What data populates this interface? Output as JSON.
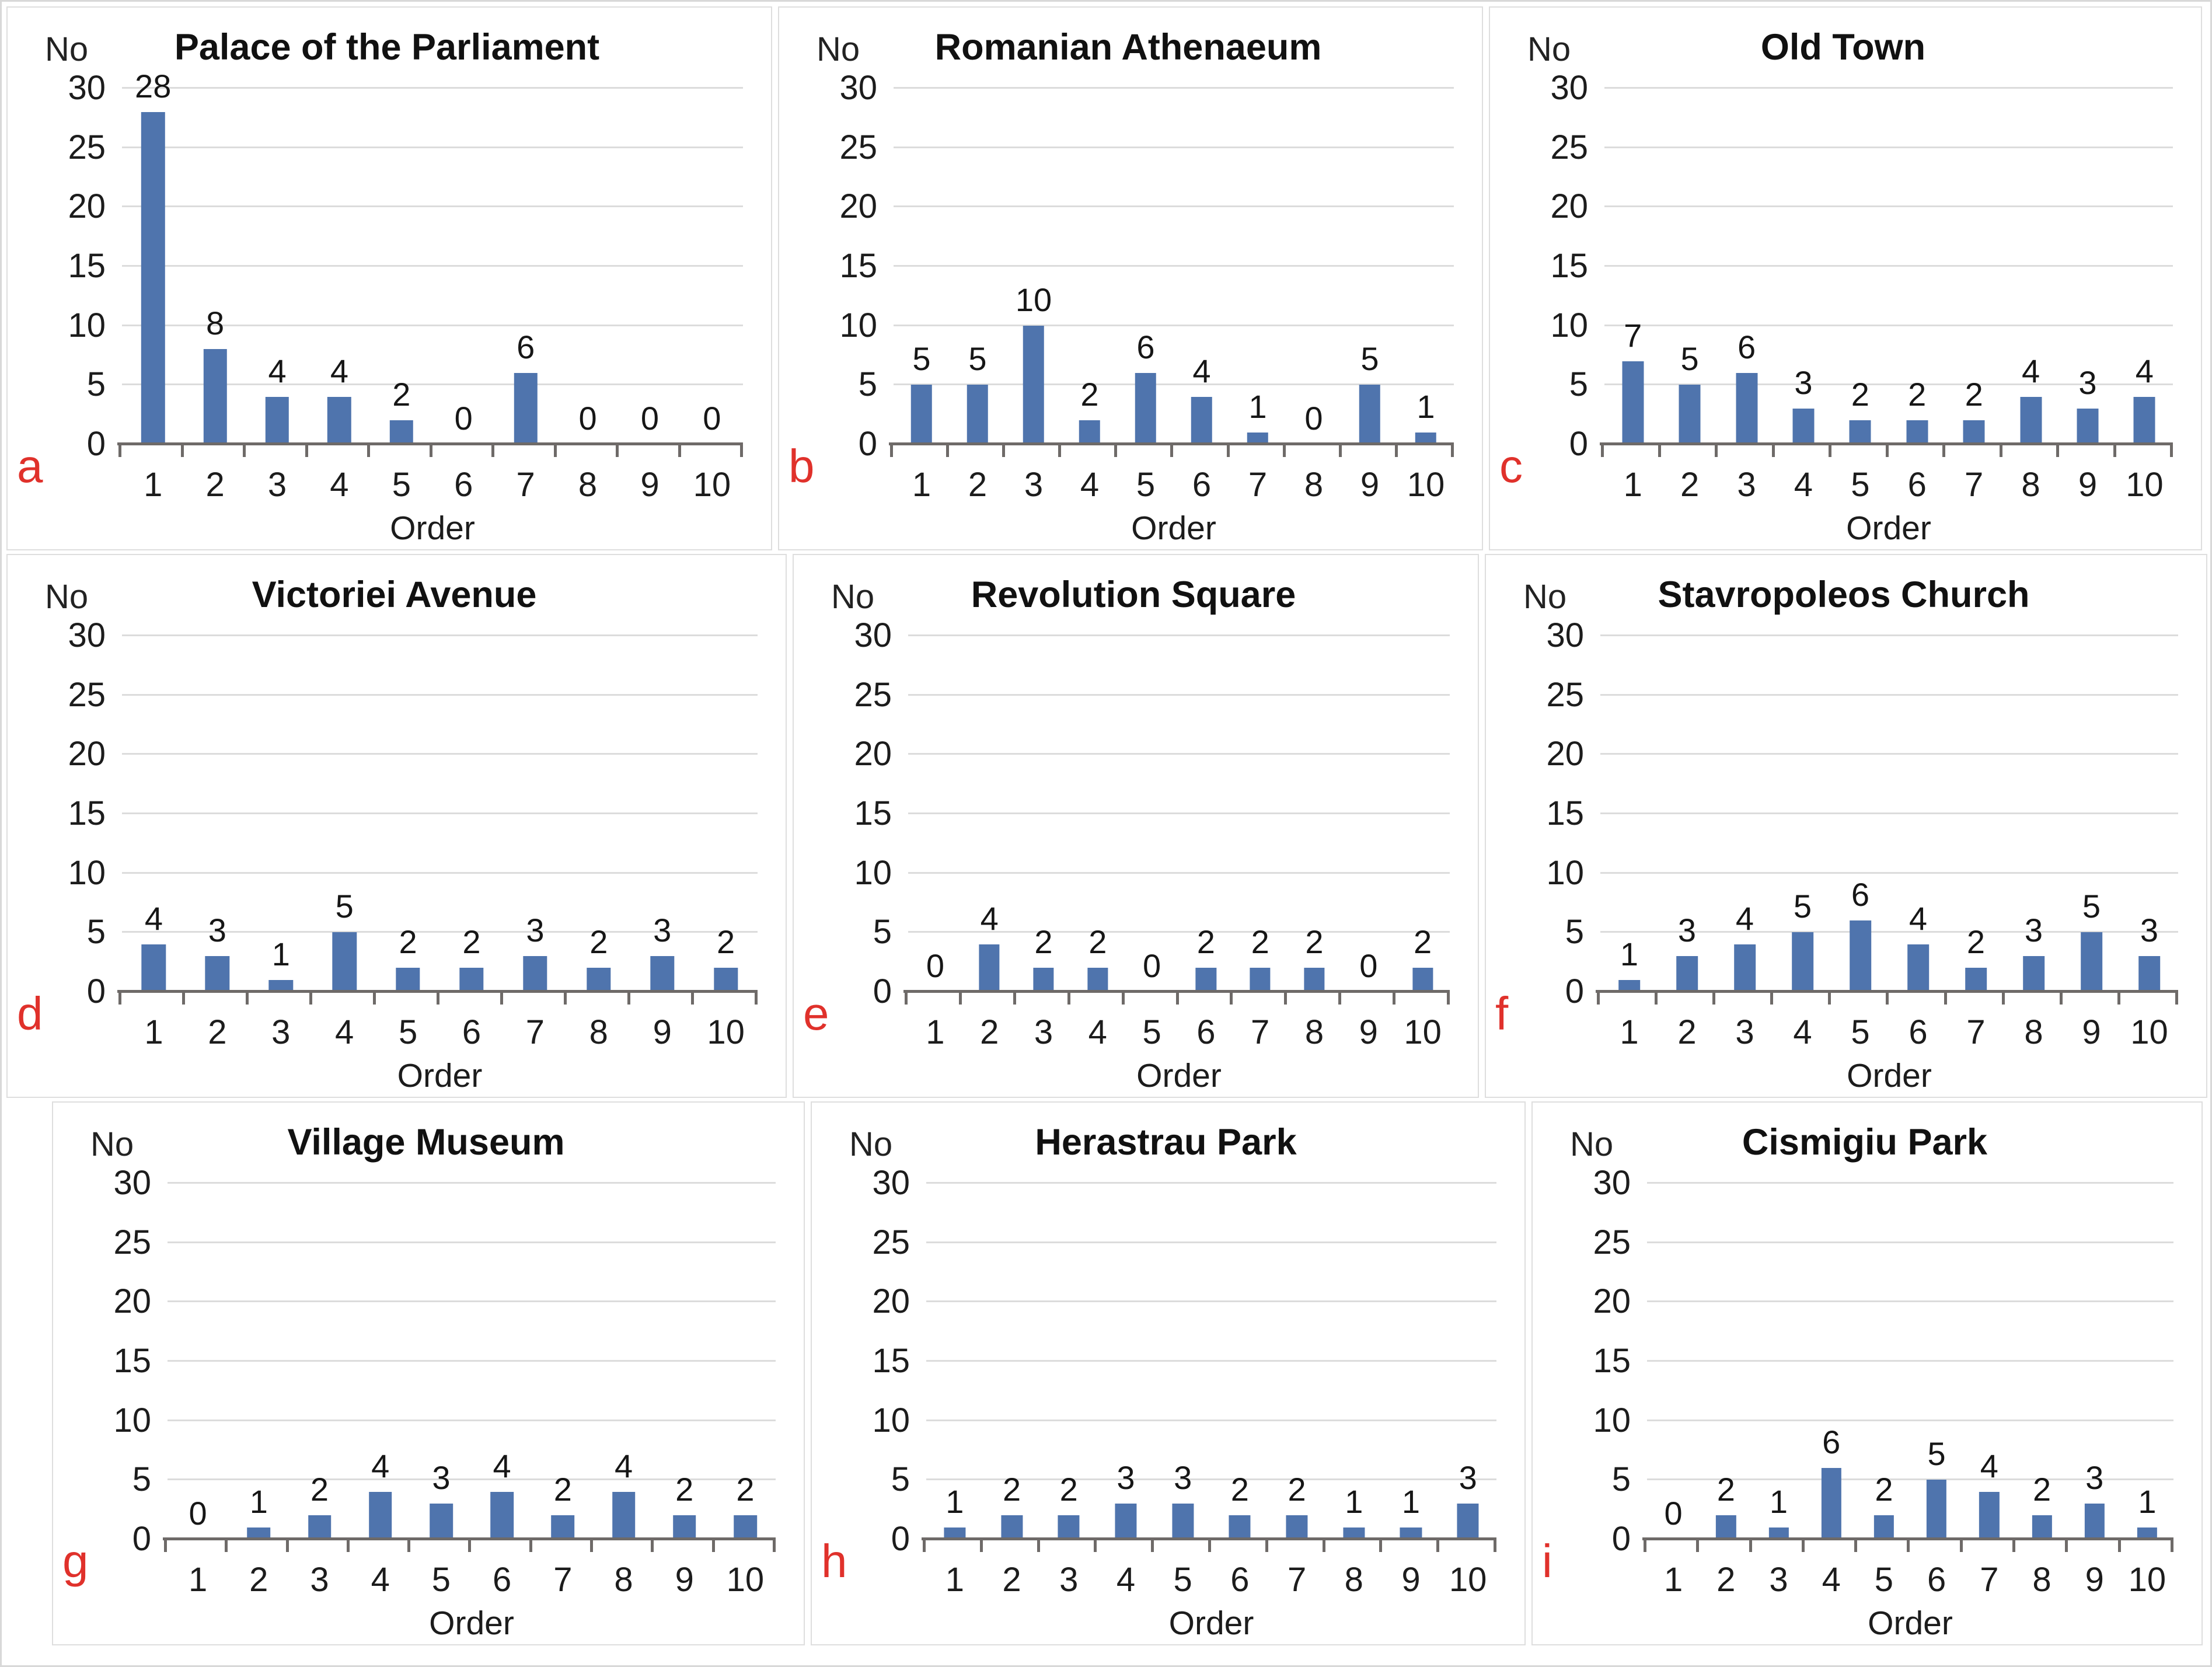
{
  "figure": {
    "y_axis_unit": "No",
    "x_axis_title": "Order",
    "y_ticks": [
      30,
      25,
      20,
      15,
      10,
      5,
      0
    ],
    "y_max": 30,
    "colors": {
      "bar": "#4f74ad",
      "gridline": "#dcdcdc",
      "axis": "#6e6a68",
      "panel_letter": "#e0312b",
      "panel_border": "#dedede",
      "text": "#1a1a1a"
    }
  },
  "chart_data": [
    {
      "type": "bar",
      "letter": "a",
      "title": "Palace of the Parliament",
      "ylabel": "No",
      "xlabel": "Order",
      "ylim": [
        0,
        30
      ],
      "grid": true,
      "categories": [
        "1",
        "2",
        "3",
        "4",
        "5",
        "6",
        "7",
        "8",
        "9",
        "10"
      ],
      "values": [
        28,
        8,
        4,
        4,
        2,
        0,
        6,
        0,
        0,
        0
      ]
    },
    {
      "type": "bar",
      "letter": "b",
      "title": "Romanian Athenaeum",
      "ylabel": "No",
      "xlabel": "Order",
      "ylim": [
        0,
        30
      ],
      "grid": true,
      "categories": [
        "1",
        "2",
        "3",
        "4",
        "5",
        "6",
        "7",
        "8",
        "9",
        "10"
      ],
      "values": [
        5,
        5,
        10,
        2,
        6,
        4,
        1,
        0,
        5,
        1
      ]
    },
    {
      "type": "bar",
      "letter": "c",
      "title": "Old Town",
      "ylabel": "No",
      "xlabel": "Order",
      "ylim": [
        0,
        30
      ],
      "grid": true,
      "categories": [
        "1",
        "2",
        "3",
        "4",
        "5",
        "6",
        "7",
        "8",
        "9",
        "10"
      ],
      "values": [
        7,
        5,
        6,
        3,
        2,
        2,
        2,
        4,
        3,
        4
      ]
    },
    {
      "type": "bar",
      "letter": "d",
      "title": "Victoriei Avenue",
      "ylabel": "No",
      "xlabel": "Order",
      "ylim": [
        0,
        30
      ],
      "grid": true,
      "categories": [
        "1",
        "2",
        "3",
        "4",
        "5",
        "6",
        "7",
        "8",
        "9",
        "10"
      ],
      "values": [
        4,
        3,
        1,
        5,
        2,
        2,
        3,
        2,
        3,
        2
      ]
    },
    {
      "type": "bar",
      "letter": "e",
      "title": "Revolution Square",
      "ylabel": "No",
      "xlabel": "Order",
      "ylim": [
        0,
        30
      ],
      "grid": true,
      "categories": [
        "1",
        "2",
        "3",
        "4",
        "5",
        "6",
        "7",
        "8",
        "9",
        "10"
      ],
      "values": [
        0,
        4,
        2,
        2,
        0,
        2,
        2,
        2,
        0,
        2
      ]
    },
    {
      "type": "bar",
      "letter": "f",
      "title": "Stavropoleos Church",
      "ylabel": "No",
      "xlabel": "Order",
      "ylim": [
        0,
        30
      ],
      "grid": true,
      "categories": [
        "1",
        "2",
        "3",
        "4",
        "5",
        "6",
        "7",
        "8",
        "9",
        "10"
      ],
      "values": [
        1,
        3,
        4,
        5,
        6,
        4,
        2,
        3,
        5,
        3
      ]
    },
    {
      "type": "bar",
      "letter": "g",
      "title": "Village Museum",
      "ylabel": "No",
      "xlabel": "Order",
      "ylim": [
        0,
        30
      ],
      "grid": true,
      "categories": [
        "1",
        "2",
        "3",
        "4",
        "5",
        "6",
        "7",
        "8",
        "9",
        "10"
      ],
      "values": [
        0,
        1,
        2,
        4,
        3,
        4,
        2,
        4,
        2,
        2
      ]
    },
    {
      "type": "bar",
      "letter": "h",
      "title": "Herastrau Park",
      "ylabel": "No",
      "xlabel": "Order",
      "ylim": [
        0,
        30
      ],
      "grid": true,
      "categories": [
        "1",
        "2",
        "3",
        "4",
        "5",
        "6",
        "7",
        "8",
        "9",
        "10"
      ],
      "values": [
        1,
        2,
        2,
        3,
        3,
        2,
        2,
        1,
        1,
        3
      ]
    },
    {
      "type": "bar",
      "letter": "i",
      "title": "Cismigiu Park",
      "ylabel": "No",
      "xlabel": "Order",
      "ylim": [
        0,
        30
      ],
      "grid": true,
      "categories": [
        "1",
        "2",
        "3",
        "4",
        "5",
        "6",
        "7",
        "8",
        "9",
        "10"
      ],
      "values": [
        0,
        2,
        1,
        6,
        2,
        5,
        4,
        2,
        3,
        1
      ]
    }
  ]
}
